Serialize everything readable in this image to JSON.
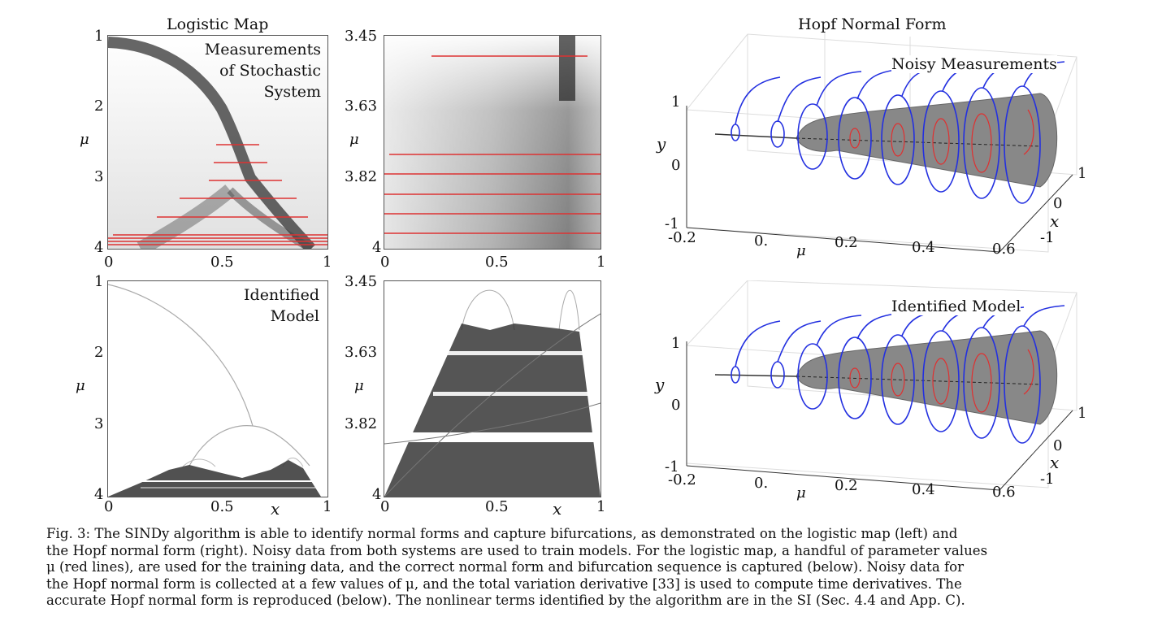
{
  "left_title": "Logistic Map",
  "right_title": "Hopf Normal Form",
  "panels": {
    "top_left": {
      "overlay": [
        "Measurements",
        "of Stochastic",
        "System"
      ],
      "yticks": [
        "1",
        "2",
        "3",
        "4"
      ],
      "xticks": [
        "0",
        "0.5",
        "1"
      ],
      "ylabel": "μ"
    },
    "top_mid": {
      "yticks": [
        "3.45",
        "3.63",
        "3.82",
        "4"
      ],
      "xticks": [
        "0",
        "0.5",
        "1"
      ],
      "ylabel": "μ"
    },
    "bot_left": {
      "overlay": [
        "Identified",
        "Model"
      ],
      "yticks": [
        "1",
        "2",
        "3",
        "4"
      ],
      "xticks": [
        "0",
        "0.5",
        "1"
      ],
      "ylabel": "μ",
      "xlabel": "x"
    },
    "bot_mid": {
      "yticks": [
        "3.45",
        "3.63",
        "3.82",
        "4"
      ],
      "xticks": [
        "0",
        "0.5",
        "1"
      ],
      "ylabel": "μ",
      "xlabel": "x"
    },
    "hopf_top": {
      "label": "Noisy Measurements",
      "yticks": [
        "1",
        "0",
        "-1"
      ],
      "ylabel": "y",
      "mu_ticks": [
        "-0.2",
        "0.",
        "0.2",
        "0.4",
        "0.6"
      ],
      "mu_label": "μ",
      "x_ticks": [
        "1",
        "0",
        "-1"
      ],
      "x_label": "x"
    },
    "hopf_bot": {
      "label": "Identified Model",
      "yticks": [
        "1",
        "0",
        "-1"
      ],
      "ylabel": "y",
      "mu_ticks": [
        "-0.2",
        "0.",
        "0.2",
        "0.4",
        "0.6"
      ],
      "mu_label": "μ",
      "x_ticks": [
        "1",
        "0",
        "-1"
      ],
      "x_label": "x"
    }
  },
  "caption_lines": [
    "Fig. 3: The SINDy algorithm is able to identify normal forms and capture bifurcations, as demonstrated on the logistic map (left) and",
    "the Hopf normal form (right). Noisy data from both systems are used to train models. For the logistic map, a handful of parameter values",
    "μ (red lines), are used for the training data, and the correct normal form and bifurcation sequence is captured (below). Noisy data for",
    "the Hopf normal form is collected at a few values of μ, and the total variation derivative [33] is used to compute time derivatives. The",
    "accurate Hopf normal form is reproduced (below). The nonlinear terms identified by the algorithm are in the SI (Sec. 4.4 and App. C)."
  ]
}
